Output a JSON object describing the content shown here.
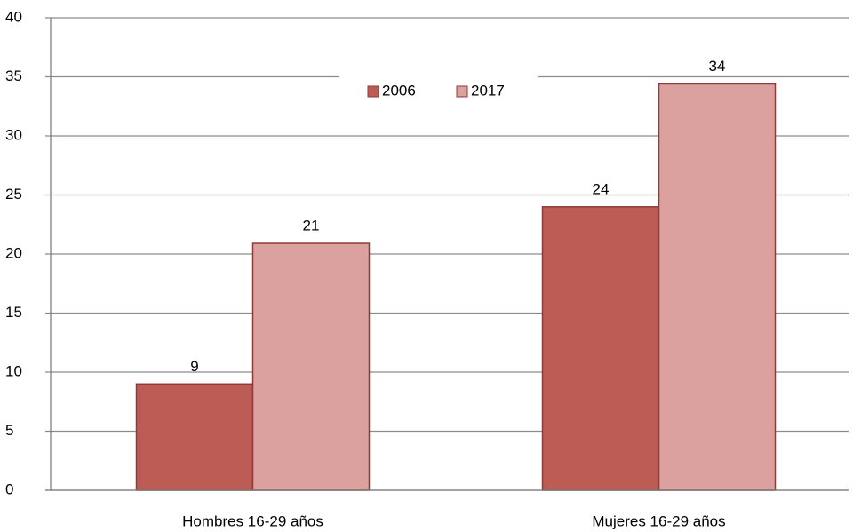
{
  "chart_data": {
    "type": "bar",
    "categories": [
      "Hombres 16-29 años",
      "Mujeres 16-29 años"
    ],
    "series": [
      {
        "name": "2006",
        "color": "#bd5c55",
        "values": [
          9,
          24
        ]
      },
      {
        "name": "2017",
        "color": "#dba19f",
        "values": [
          20.9,
          34.4
        ],
        "value_labels": [
          "21",
          "34"
        ]
      }
    ],
    "ylim": [
      0,
      40
    ],
    "yticks": [
      0,
      5,
      10,
      15,
      20,
      25,
      30,
      35,
      40
    ],
    "grid": true,
    "legend": "top"
  }
}
